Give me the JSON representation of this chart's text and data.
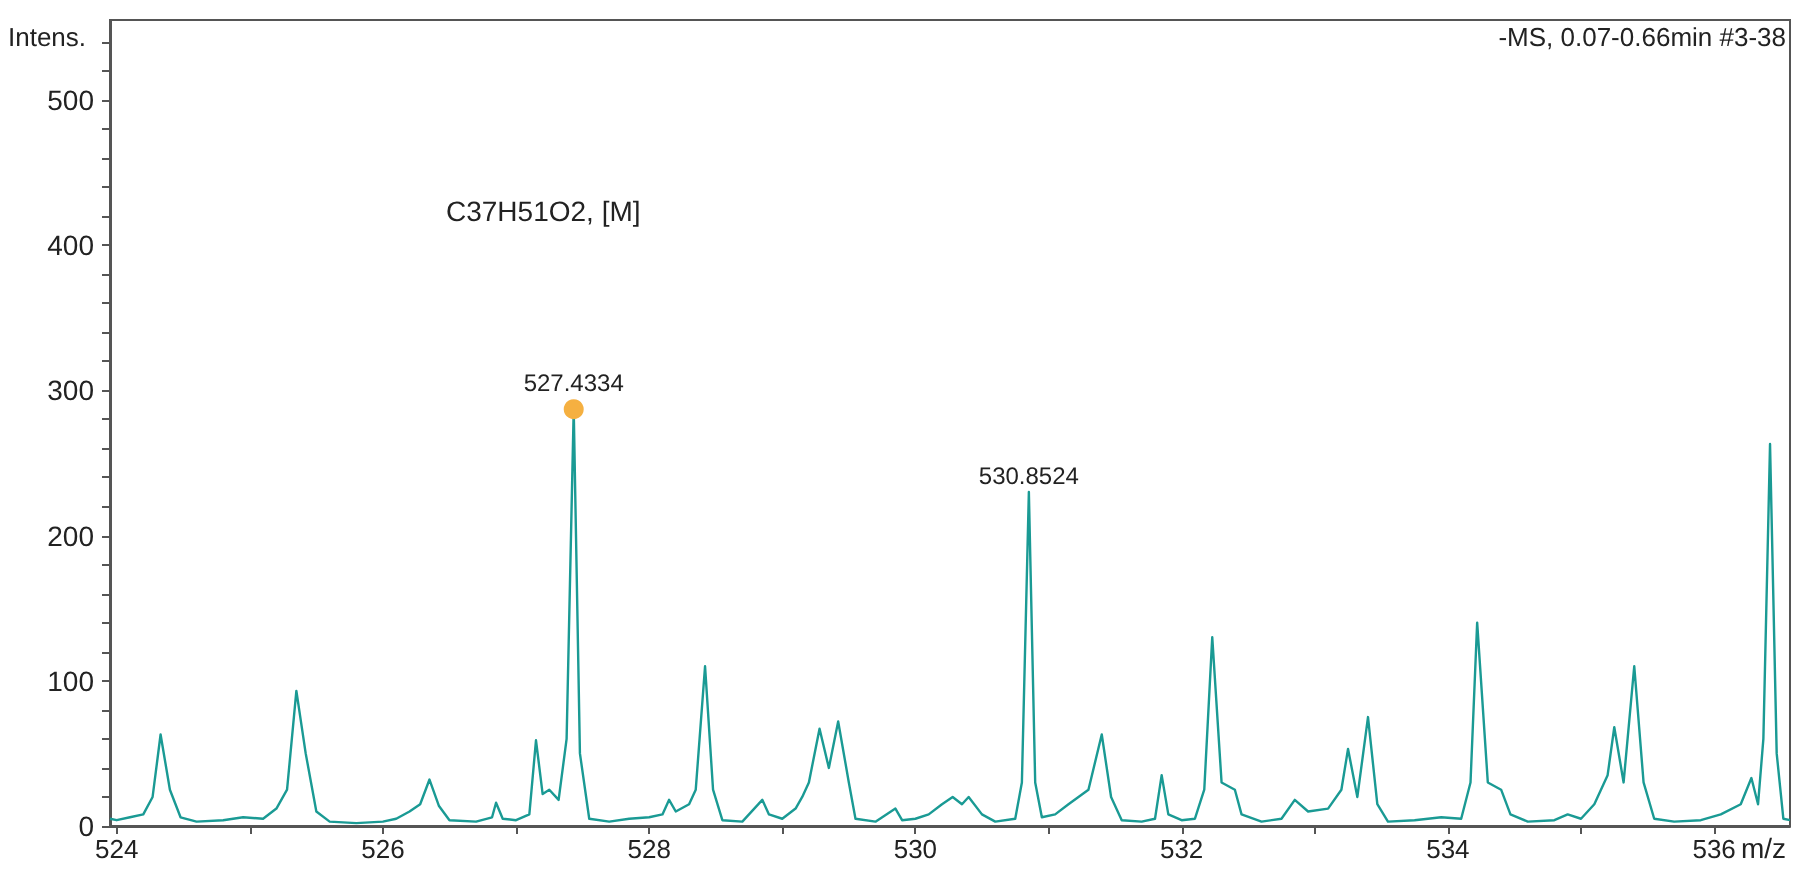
{
  "chart_data": {
    "type": "line",
    "xlabel": "m/z",
    "ylabel": "Intens.",
    "annotations": [
      "C37H51O2, [M]",
      "-MS, 0.07-0.66min #3-38",
      {
        "text": "527.4334",
        "x": 527.4334,
        "y": 287
      },
      {
        "text": "530.8524",
        "x": 530.8524,
        "y": 230
      }
    ],
    "xlim": [
      523.95,
      536.57
    ],
    "ylim": [
      0,
      555
    ],
    "xticks": [
      524,
      {
        "value": 525,
        "label": null
      },
      526,
      {
        "value": 527,
        "label": null
      },
      528,
      {
        "value": 529,
        "label": null
      },
      530,
      {
        "value": 531,
        "label": null
      },
      532,
      {
        "value": 533,
        "label": null
      },
      534,
      {
        "value": 535,
        "label": null
      },
      536
    ],
    "yticks": [
      0,
      {
        "value": 20,
        "label": null
      },
      {
        "value": 40,
        "label": null
      },
      {
        "value": 60,
        "label": null
      },
      {
        "value": 80,
        "label": null
      },
      100,
      {
        "value": 120,
        "label": null
      },
      {
        "value": 140,
        "label": null
      },
      {
        "value": 160,
        "label": null
      },
      {
        "value": 180,
        "label": null
      },
      200,
      {
        "value": 220,
        "label": null
      },
      {
        "value": 240,
        "label": null
      },
      {
        "value": 260,
        "label": null
      },
      {
        "value": 280,
        "label": null
      },
      300,
      {
        "value": 320,
        "label": null
      },
      {
        "value": 340,
        "label": null
      },
      {
        "value": 360,
        "label": null
      },
      {
        "value": 380,
        "label": null
      },
      400,
      {
        "value": 420,
        "label": null
      },
      {
        "value": 440,
        "label": null
      },
      {
        "value": 460,
        "label": null
      },
      {
        "value": 480,
        "label": null
      },
      500,
      {
        "value": 520,
        "label": null
      },
      {
        "value": 540,
        "label": null
      }
    ],
    "grid": false,
    "marker": "none",
    "line_style": "solid",
    "series": [
      {
        "color": "#1a9a94",
        "x": [
          523.95,
          524.0,
          524.1,
          524.2,
          524.27,
          524.33,
          524.4,
          524.48,
          524.6,
          524.8,
          524.95,
          525.1,
          525.2,
          525.28,
          525.35,
          525.42,
          525.5,
          525.6,
          525.8,
          526.0,
          526.1,
          526.2,
          526.28,
          526.35,
          526.42,
          526.5,
          526.7,
          526.82,
          526.85,
          526.9,
          527.0,
          527.1,
          527.15,
          527.2,
          527.25,
          527.32,
          527.38,
          527.4334,
          527.48,
          527.55,
          527.7,
          527.85,
          528.0,
          528.1,
          528.15,
          528.2,
          528.3,
          528.35,
          528.42,
          528.48,
          528.55,
          528.7,
          528.85,
          528.9,
          529.0,
          529.1,
          529.15,
          529.2,
          529.28,
          529.35,
          529.42,
          529.5,
          529.55,
          529.7,
          529.85,
          529.9,
          530.0,
          530.1,
          530.2,
          530.28,
          530.35,
          530.4,
          530.5,
          530.6,
          530.75,
          530.8,
          530.8524,
          530.9,
          530.95,
          531.05,
          531.15,
          531.3,
          531.4,
          531.47,
          531.55,
          531.7,
          531.8,
          531.85,
          531.9,
          532.0,
          532.1,
          532.17,
          532.23,
          532.3,
          532.4,
          532.45,
          532.6,
          532.75,
          532.85,
          532.95,
          533.1,
          533.2,
          533.25,
          533.32,
          533.4,
          533.47,
          533.55,
          533.75,
          533.95,
          534.1,
          534.17,
          534.22,
          534.3,
          534.4,
          534.47,
          534.6,
          534.8,
          534.9,
          535.0,
          535.1,
          535.2,
          535.25,
          535.32,
          535.4,
          535.47,
          535.55,
          535.7,
          535.9,
          536.05,
          536.2,
          536.28,
          536.33,
          536.37,
          536.42,
          536.47,
          536.52,
          536.57
        ],
        "values": [
          5,
          4,
          6,
          8,
          20,
          63,
          25,
          6,
          3,
          4,
          6,
          5,
          12,
          25,
          93,
          50,
          10,
          3,
          2,
          3,
          5,
          10,
          15,
          32,
          14,
          4,
          3,
          6,
          16,
          5,
          4,
          8,
          59,
          22,
          25,
          18,
          60,
          287,
          50,
          5,
          3,
          5,
          6,
          8,
          18,
          10,
          15,
          25,
          110,
          25,
          4,
          3,
          18,
          8,
          5,
          12,
          20,
          30,
          67,
          40,
          72,
          30,
          5,
          3,
          12,
          4,
          5,
          8,
          15,
          20,
          15,
          20,
          8,
          3,
          5,
          30,
          230,
          30,
          6,
          8,
          15,
          25,
          63,
          20,
          4,
          3,
          5,
          35,
          8,
          4,
          5,
          25,
          130,
          30,
          25,
          8,
          3,
          5,
          18,
          10,
          12,
          25,
          53,
          20,
          75,
          15,
          3,
          4,
          6,
          5,
          30,
          140,
          30,
          25,
          8,
          3,
          4,
          8,
          5,
          15,
          35,
          68,
          30,
          110,
          30,
          5,
          3,
          4,
          8,
          15,
          33,
          15,
          60,
          263,
          50,
          5,
          4
        ]
      }
    ]
  }
}
